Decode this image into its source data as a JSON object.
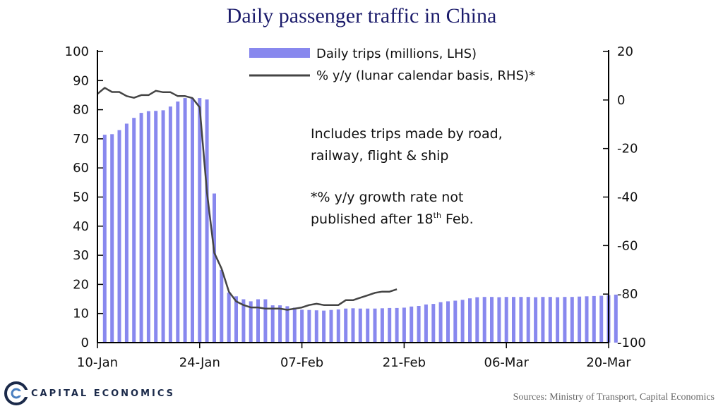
{
  "chart_data": {
    "type": "bar+line",
    "title": "Daily passenger traffic in China",
    "x_tick_labels": [
      "10-Jan",
      "24-Jan",
      "07-Feb",
      "21-Feb",
      "06-Mar",
      "20-Mar"
    ],
    "x_tick_day_offsets": [
      0,
      14,
      28,
      42,
      56,
      70
    ],
    "left_axis": {
      "ylim": [
        0,
        100
      ],
      "ticks": [
        "0",
        "10",
        "20",
        "30",
        "40",
        "50",
        "60",
        "70",
        "80",
        "90",
        "100"
      ]
    },
    "right_axis": {
      "ylim": [
        -100,
        20
      ],
      "ticks": [
        "-100",
        "-80",
        "-60",
        "-40",
        "-20",
        "0",
        "20"
      ]
    },
    "legend": {
      "bars_label": "Daily trips (millions, LHS)",
      "line_label": "% y/y (lunar calendar basis, RHS)*",
      "position": "top"
    },
    "annotations": {
      "note1_line1": "Includes  trips  made by road,",
      "note1_line2": "railway,  flight  &  ship",
      "note2_line1": "*% y/y growth  rate not",
      "note2_line2_pre": "published   after 18",
      "note2_sup": "th",
      "note2_line2_post": "  Feb."
    },
    "bar_series": {
      "name": "Daily trips (millions, LHS)",
      "color": "#8888ee",
      "start_day": 1,
      "values": [
        71.4,
        71.6,
        73.0,
        75.2,
        77.2,
        78.9,
        79.5,
        79.6,
        79.8,
        81.1,
        82.8,
        84.0,
        84.0,
        84.0,
        83.5,
        51.2,
        25.0,
        17.2,
        15.9,
        14.9,
        14.2,
        14.9,
        14.9,
        12.8,
        12.8,
        12.5,
        12.0,
        11.3,
        11.2,
        11.1,
        11.0,
        11.2,
        11.4,
        11.7,
        11.8,
        11.7,
        11.7,
        11.7,
        11.8,
        11.9,
        11.9,
        12.0,
        12.4,
        12.6,
        13.1,
        13.3,
        13.9,
        14.2,
        14.4,
        14.7,
        15.2,
        15.6,
        15.7,
        15.7,
        15.6,
        15.7,
        15.7,
        15.7,
        15.7,
        15.6,
        15.7,
        15.7,
        15.6,
        15.7,
        15.7,
        15.8,
        15.9,
        16.0,
        16.1,
        16.3,
        16.5
      ]
    },
    "line_series": {
      "name": "% y/y (lunar calendar basis, RHS)*",
      "color": "#444444",
      "start_day": 0,
      "values": [
        2.5,
        5.0,
        3.3,
        3.3,
        1.6,
        0.9,
        2.0,
        2.0,
        3.8,
        3.2,
        3.2,
        1.6,
        1.6,
        0.8,
        -3.0,
        -38.0,
        -63.0,
        -69.5,
        -79.0,
        -83.0,
        -84.5,
        -85.5,
        -85.5,
        -86.0,
        -86.0,
        -86.0,
        -86.5,
        -86.0,
        -85.5,
        -84.5,
        -84.0,
        -84.5,
        -84.5,
        -84.5,
        -82.5,
        -82.5,
        -81.5,
        -80.5,
        -79.5,
        -79.0,
        -79.0,
        -78.0
      ]
    },
    "grid": false
  },
  "footer": {
    "brand": "CAPITAL ECONOMICS",
    "source": "Sources: Ministry of Transport, Capital Economics"
  }
}
